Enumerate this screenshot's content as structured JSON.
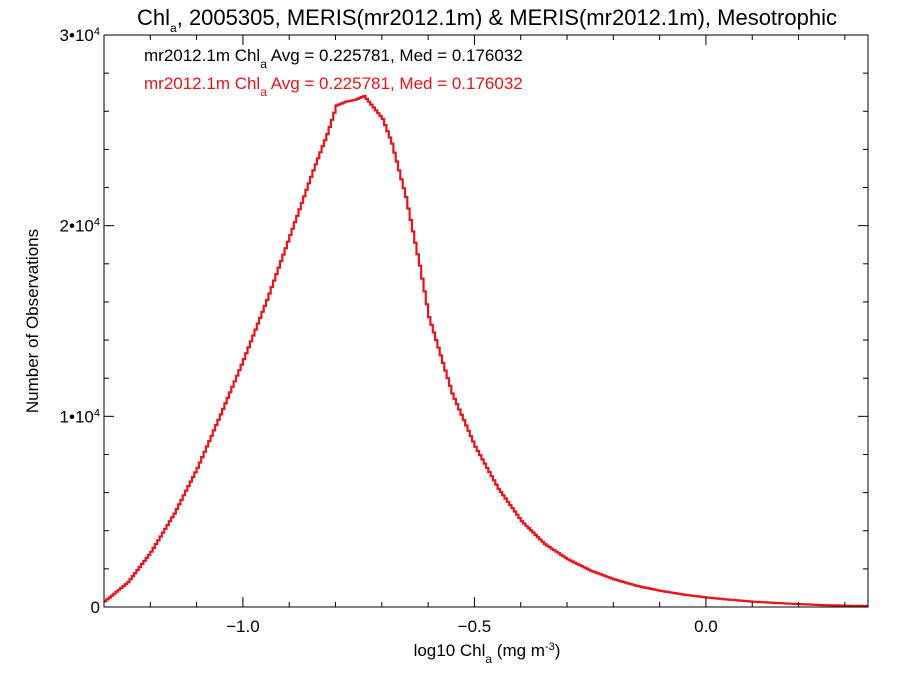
{
  "chart_data": {
    "type": "line",
    "title": {
      "parts": [
        {
          "text": "Chl",
          "style": "normal"
        },
        {
          "text": "a",
          "style": "sub"
        },
        {
          "text": ", 2005305, MERIS(mr2012.1m) & MERIS(mr2012.1m), Mesotrophic",
          "style": "normal"
        }
      ]
    },
    "xlabel": {
      "parts": [
        {
          "text": "log10 Chl",
          "style": "normal"
        },
        {
          "text": "a",
          "style": "sub"
        },
        {
          "text": " (mg m",
          "style": "normal"
        },
        {
          "text": "-3",
          "style": "sup"
        },
        {
          "text": ")",
          "style": "normal"
        }
      ]
    },
    "ylabel": "Number of Observations",
    "xlim": [
      -1.3,
      0.35
    ],
    "ylim": [
      0,
      30000
    ],
    "x_ticks": [
      {
        "value": -1.0,
        "label": "−1.0"
      },
      {
        "value": -0.5,
        "label": "−0.5"
      },
      {
        "value": 0.0,
        "label": "0.0"
      }
    ],
    "y_ticks": [
      {
        "value": 0,
        "parts": [
          {
            "text": "0",
            "style": "normal"
          }
        ]
      },
      {
        "value": 10000,
        "parts": [
          {
            "text": "1•10",
            "style": "normal"
          },
          {
            "text": "4",
            "style": "sup"
          }
        ]
      },
      {
        "value": 20000,
        "parts": [
          {
            "text": "2•10",
            "style": "normal"
          },
          {
            "text": "4",
            "style": "sup"
          }
        ]
      },
      {
        "value": 30000,
        "parts": [
          {
            "text": "3•10",
            "style": "normal"
          },
          {
            "text": "4",
            "style": "sup"
          }
        ]
      }
    ],
    "grid": false,
    "legend": {
      "placement": "top-left",
      "entries": [
        {
          "color": "#000000",
          "parts": [
            {
              "text": "mr2012.1m Chl",
              "style": "normal"
            },
            {
              "text": "a",
              "style": "sub"
            },
            {
              "text": " Avg = 0.225781, Med = 0.176032",
              "style": "normal"
            }
          ]
        },
        {
          "color": "#e8141c",
          "parts": [
            {
              "text": "mr2012.1m Chl",
              "style": "normal"
            },
            {
              "text": "a",
              "style": "sub"
            },
            {
              "text": " Avg = 0.225781, Med = 0.176032",
              "style": "normal"
            }
          ]
        }
      ]
    },
    "series": [
      {
        "color": "#e8141c",
        "step": true,
        "x": [
          -1.3,
          -1.25,
          -1.2,
          -1.15,
          -1.1,
          -1.05,
          -1.0,
          -0.95,
          -0.9,
          -0.85,
          -0.82,
          -0.8,
          -0.78,
          -0.76,
          -0.74,
          -0.72,
          -0.7,
          -0.68,
          -0.65,
          -0.62,
          -0.6,
          -0.55,
          -0.5,
          -0.45,
          -0.4,
          -0.35,
          -0.3,
          -0.25,
          -0.2,
          -0.15,
          -0.1,
          -0.05,
          0.0,
          0.05,
          0.1,
          0.15,
          0.2,
          0.25,
          0.3,
          0.35
        ],
        "values": [
          300,
          1300,
          2900,
          4900,
          7300,
          10100,
          13000,
          16100,
          19500,
          22900,
          24800,
          26300,
          26500,
          26600,
          26800,
          26200,
          25600,
          24300,
          21500,
          17900,
          15200,
          11200,
          8400,
          6200,
          4500,
          3300,
          2500,
          1900,
          1450,
          1100,
          850,
          650,
          500,
          380,
          280,
          210,
          150,
          100,
          70,
          50
        ]
      }
    ]
  }
}
